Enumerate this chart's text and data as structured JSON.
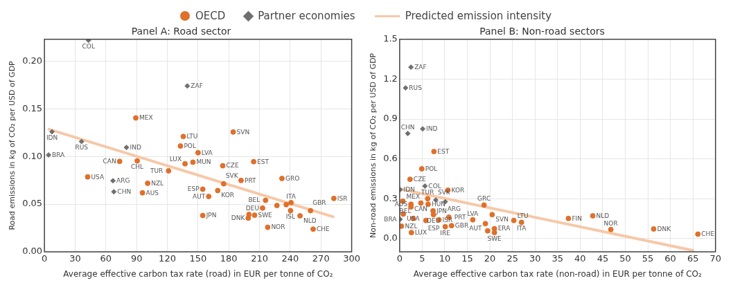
{
  "chart_data": [
    {
      "type": "scatter",
      "title": "Panel A: Road sector",
      "xlabel": "Average effective carbon tax rate (road) in EUR per tonne of CO₂",
      "ylabel": "Road emissions in kg of CO₂ per USD of GDP",
      "legend": "top",
      "grid": true,
      "xlim": [
        0,
        300
      ],
      "xticks": [
        0,
        30,
        60,
        90,
        120,
        150,
        180,
        210,
        240,
        270,
        300
      ],
      "ylim": [
        0,
        0.223
      ],
      "yticks": [
        {
          "value": 0,
          "label": "0.00"
        },
        {
          "value": 0.05,
          "label": "0.05"
        },
        {
          "value": 0.1,
          "label": "0.10"
        },
        {
          "value": 0.15,
          "label": "0.15"
        },
        {
          "value": 0.2,
          "label": "0.20"
        }
      ],
      "series": [
        {
          "name": "OECD",
          "type": "scatter",
          "marker": "circle",
          "color": "#e0702a",
          "x": [
            89.2,
            73.4,
            90.6,
            42.2,
            100.8,
            95.7,
            121.2,
            135.6,
            132.8,
            137.3,
            150,
            145,
            174.1,
            204.3,
            184.3,
            192,
            231.9,
            175,
            154.6,
            169.2,
            160.4,
            154.6,
            215.9,
            213,
            227,
            236.1,
            240.8,
            240.3,
            259.8,
            249.6,
            282.6,
            262.4,
            218,
            199.7,
            199,
            205.2
          ],
          "values": [
            0.1405,
            0.0949,
            0.0954,
            0.0786,
            0.0719,
            0.0619,
            0.085,
            0.121,
            0.111,
            0.0924,
            0.104,
            0.094,
            0.0903,
            0.0946,
            0.1257,
            0.0749,
            0.077,
            0.0714,
            0.0657,
            0.0643,
            0.0581,
            0.0381,
            0.054,
            0.0459,
            0.0486,
            0.0495,
            0.0516,
            0.0432,
            0.0432,
            0.0378,
            0.056,
            0.0238,
            0.0257,
            0.0392,
            0.0354,
            0.0384
          ],
          "value_labels": [
            "MEX",
            "CAN",
            "CHL",
            "USA",
            "NZL",
            "AUS",
            "TUR",
            "LTU",
            "POL",
            "LUX",
            "LVA",
            "MUN",
            "CZE",
            "EST",
            "SVN",
            "PRT",
            "GRO",
            "SVK",
            "ESP",
            "KOR",
            "AUT",
            "JPN",
            "BEL",
            "DEU",
            null,
            null,
            "ITA",
            "ISL",
            "GBR",
            "NLD",
            "ISR",
            "CHE",
            "NOR",
            null,
            "DNK",
            "SWE"
          ]
        },
        {
          "name": "Partner economies",
          "type": "scatter",
          "marker": "diamond",
          "color": "#707070",
          "x": [
            43,
            7.4,
            36.2,
            4,
            80.1,
            66.9,
            67.8,
            139.5
          ],
          "values": [
            0.222,
            0.126,
            0.1157,
            0.1016,
            0.1095,
            0.0746,
            0.063,
            0.174
          ],
          "value_labels": [
            "COL",
            "IDN",
            "RUS",
            "BRA",
            "IND",
            "ARG",
            "CHN",
            "ZAF"
          ]
        },
        {
          "name": "Predicted emission intensity",
          "type": "line",
          "marker": "none",
          "color": "#f6c8a8",
          "x": [
            4.4,
            281.9
          ],
          "values": [
            0.1286,
            0.0368
          ]
        }
      ]
    },
    {
      "type": "scatter",
      "title": "Panel B: Non-road sectors",
      "xlabel": "Average effective carbon tax rate (non-road) in EUR per tonne of CO₂",
      "ylabel": "Non-road emissions in kg of CO₂ per USD of GDP",
      "grid": true,
      "xlim": [
        0,
        70
      ],
      "xticks": [
        0,
        5,
        10,
        15,
        20,
        25,
        30,
        35,
        40,
        45,
        50,
        55,
        60,
        65,
        70
      ],
      "ylim": [
        -0.1,
        1.5
      ],
      "yticks": [
        {
          "value": 0,
          "label": "0.0"
        },
        0.3,
        0.6,
        0.9,
        1.2,
        1.5
      ],
      "series": [
        {
          "name": "OECD",
          "type": "scatter",
          "marker": "circle",
          "color": "#e0702a",
          "x": [
            7.6,
            4.9,
            2.3,
            10.7,
            0.7,
            4.7,
            2.5,
            6.3,
            6.2,
            0.8,
            0.4,
            2.6,
            3,
            5.8,
            2.5,
            7.4,
            7.5,
            8.7,
            10.1,
            10.9,
            11.5,
            16.2,
            18.7,
            20.5,
            19,
            19.5,
            21,
            21,
            25.3,
            27,
            37.4,
            42.8,
            46.8,
            56.3,
            66.1
          ],
          "values": [
            0.655,
            0.525,
            0.446,
            0.364,
            0.281,
            0.267,
            0.258,
            0.258,
            0.3,
            0.184,
            0.093,
            0.045,
            0.151,
            0.136,
            0.238,
            0.209,
            0.18,
            0.141,
            0.089,
            0.161,
            0.097,
            0.141,
            0.252,
            0.18,
            0.112,
            0.058,
            0.074,
            0.045,
            0.136,
            0.122,
            0.151,
            0.171,
            0.068,
            0.072,
            0.033
          ],
          "value_labels": [
            "EST",
            "POL",
            "CZE",
            "KOR",
            "MEX",
            "CAN",
            "AUS",
            "HUN",
            "TUR",
            "USA",
            "NZL",
            "LUX",
            "BEL",
            "ESP",
            null,
            "JPN",
            "DEU",
            "ISR",
            "IRE",
            "PRT",
            "GBR",
            "LVA",
            "GRC",
            "SVN",
            "AUT",
            null,
            "ERA",
            "SWE",
            "LTU",
            "ITA",
            "FIN",
            "NLD",
            "NOR",
            "DNK",
            "CHE"
          ]
        },
        {
          "name": "Partner economies",
          "type": "scatter",
          "marker": "diamond",
          "color": "#707070",
          "x": [
            2.5,
            1.3,
            5.1,
            1.8,
            5.6,
            0.1,
            0.1,
            10.1,
            8
          ],
          "values": [
            1.29,
            1.134,
            0.826,
            0.791,
            0.395,
            0.368,
            0.145,
            0.277,
            0.29
          ],
          "value_labels": [
            "ZAF",
            "RUS",
            "IND",
            "CHN",
            "COL",
            "IDN",
            "BRA",
            "ARG",
            "SVK"
          ]
        },
        {
          "name": "Predicted emission intensity",
          "type": "line",
          "marker": "none",
          "color": "#f6c8a8",
          "x": [
            0.5,
            65
          ],
          "values": [
            0.37,
            -0.09
          ]
        }
      ]
    }
  ]
}
